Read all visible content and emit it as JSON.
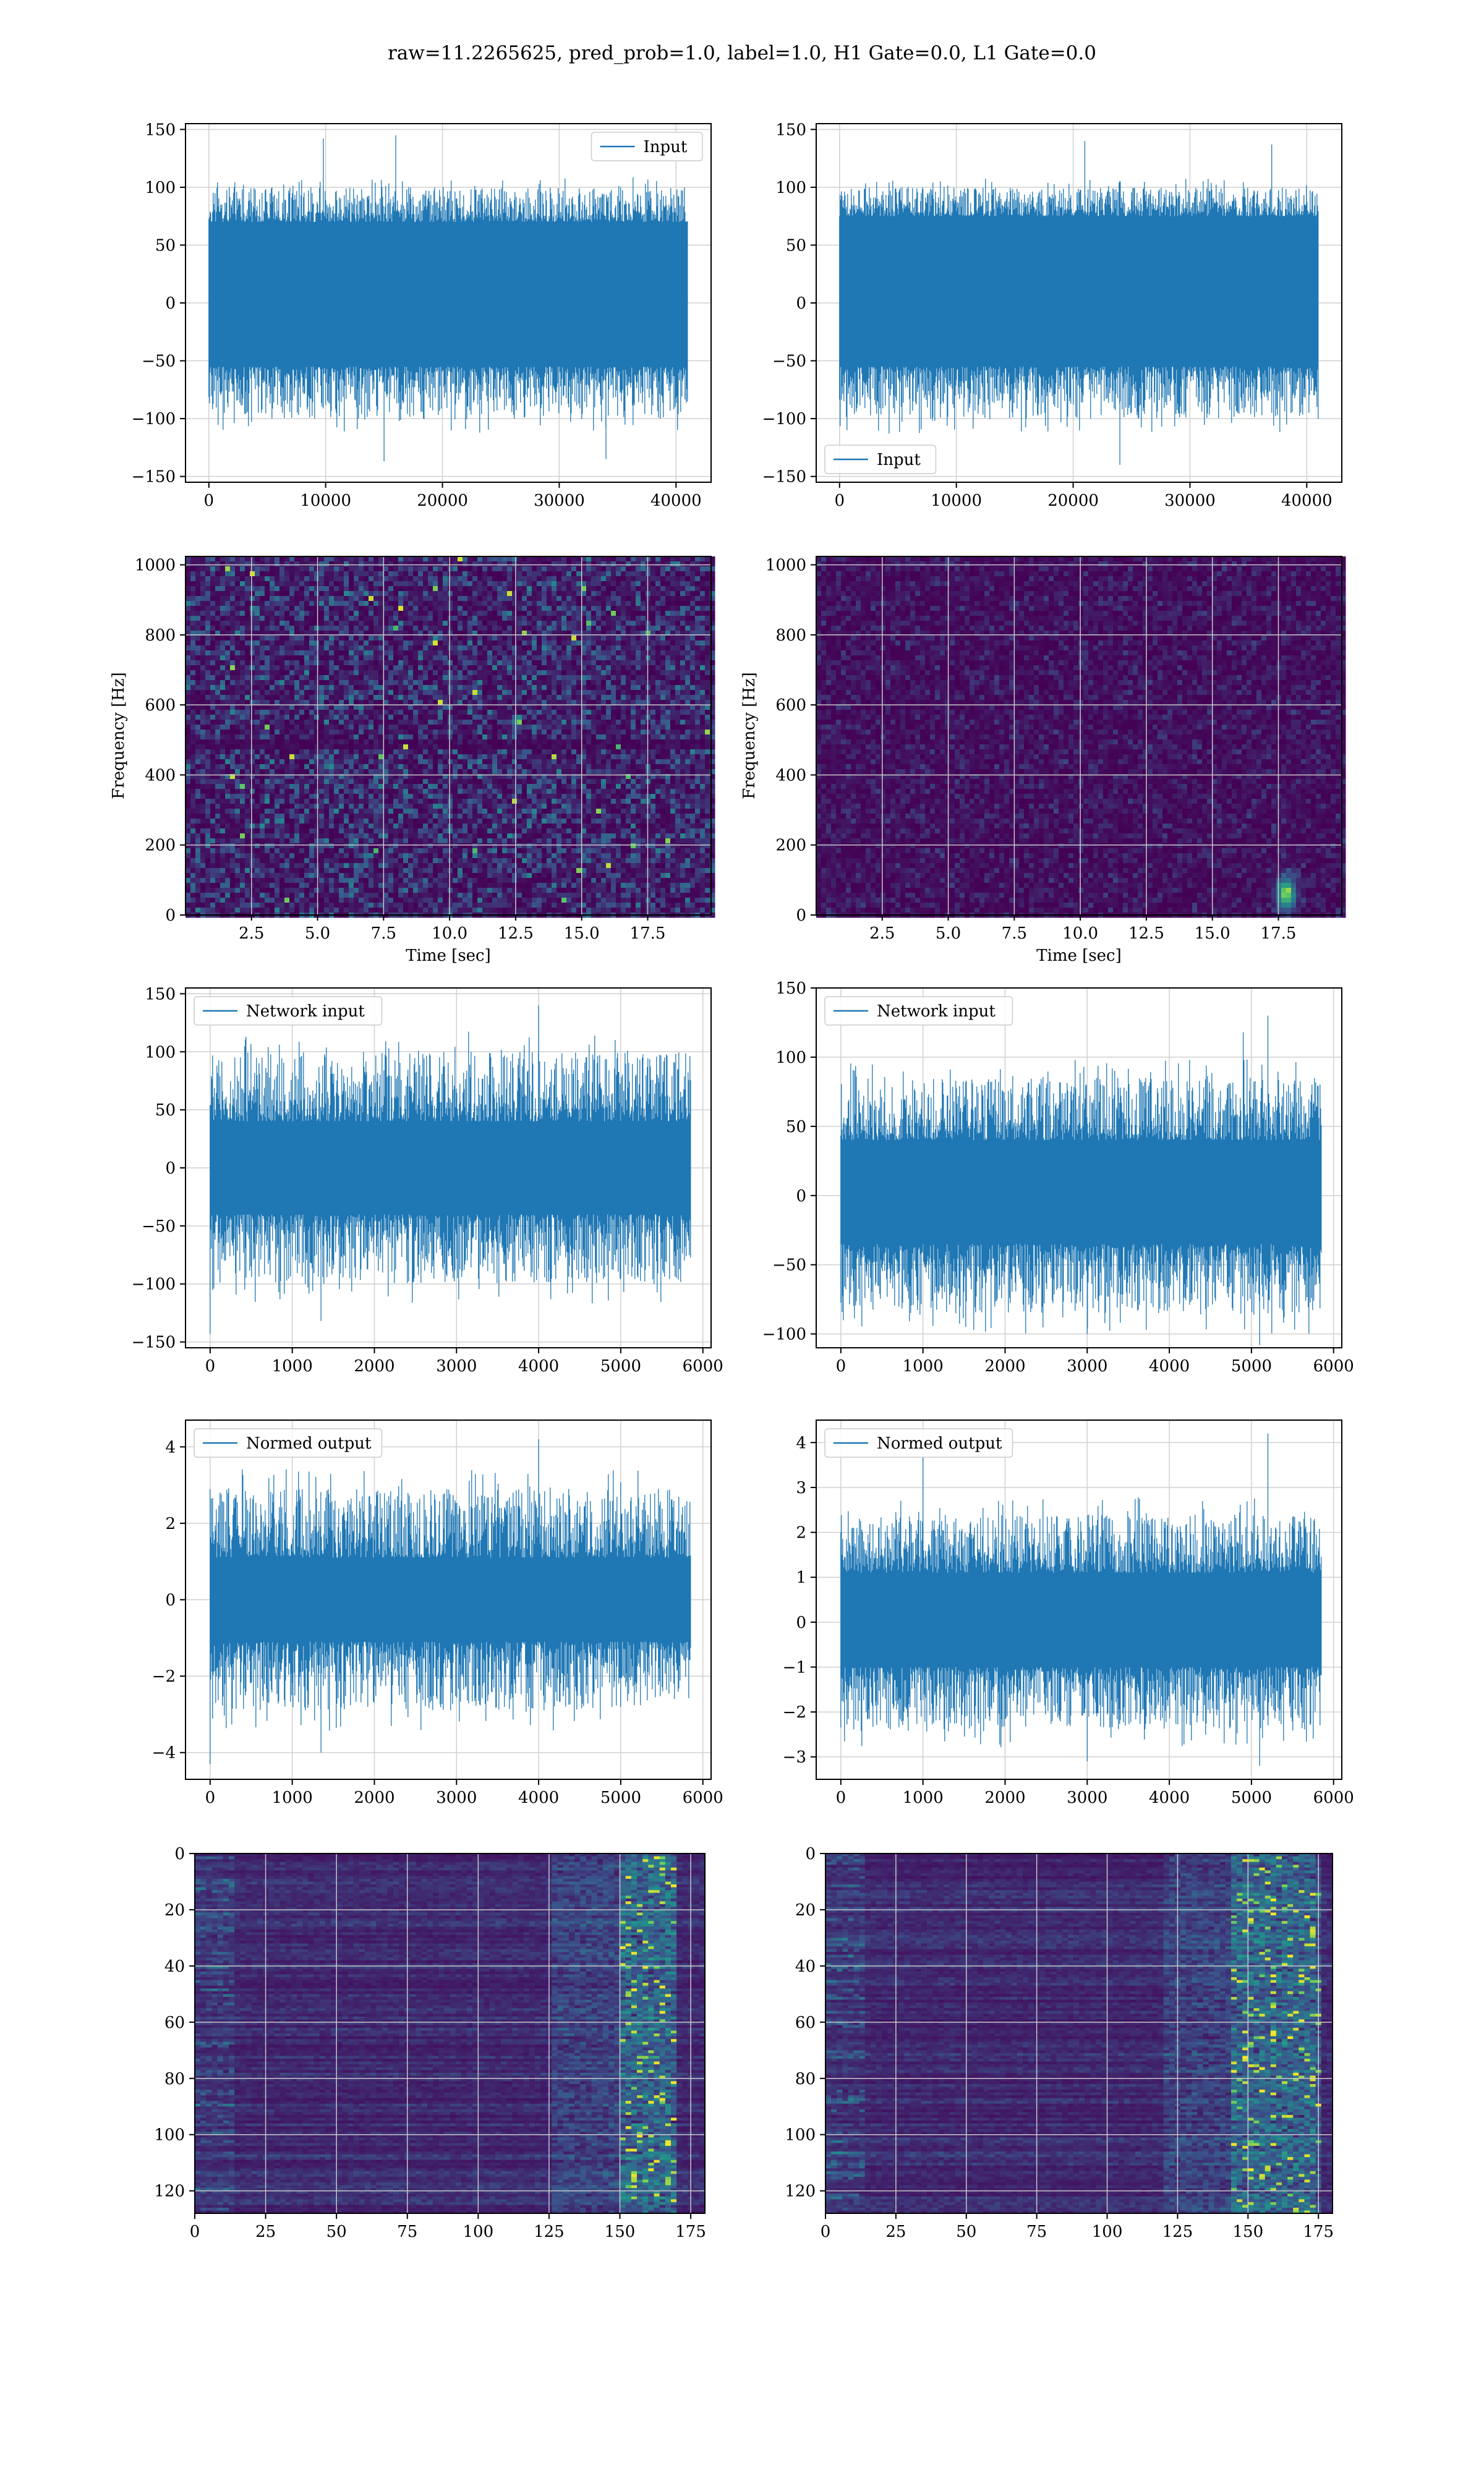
{
  "figure": {
    "title": "raw=11.2265625, pred_prob=1.0, label=1.0, H1 Gate=0.0, L1 Gate=0.0"
  },
  "colors": {
    "series": "#1f77b4",
    "grid": "#b0b0b0",
    "viridis_low": "#440154",
    "viridis_mid": "#21918c",
    "viridis_high": "#fde725"
  },
  "chart_data": [
    {
      "id": "input-left",
      "type": "line",
      "legend": {
        "label": "Input",
        "loc": "upper right"
      },
      "xlim": [
        -2000,
        43000
      ],
      "ylim": [
        -155,
        155
      ],
      "xticks": [
        0,
        10000,
        20000,
        30000,
        40000
      ],
      "yticks": [
        -150,
        -100,
        -50,
        0,
        50,
        100,
        150
      ],
      "n_samples": 40960,
      "envelope": [
        -100,
        100
      ],
      "core": [
        -55,
        70
      ],
      "peaks": [
        {
          "x": 9800,
          "y": 142
        },
        {
          "x": 16000,
          "y": 145
        },
        {
          "x": 15000,
          "y": -137
        },
        {
          "x": 34000,
          "y": -135
        }
      ],
      "grid": true
    },
    {
      "id": "input-right",
      "type": "line",
      "legend": {
        "label": "Input",
        "loc": "lower left"
      },
      "xlim": [
        -2000,
        43000
      ],
      "ylim": [
        -155,
        155
      ],
      "xticks": [
        0,
        10000,
        20000,
        30000,
        40000
      ],
      "yticks": [
        -150,
        -100,
        -50,
        0,
        50,
        100,
        150
      ],
      "n_samples": 40960,
      "envelope": [
        -100,
        100
      ],
      "core": [
        -55,
        75
      ],
      "peaks": [
        {
          "x": 21000,
          "y": 140
        },
        {
          "x": 24000,
          "y": -140
        },
        {
          "x": 37000,
          "y": 137
        }
      ],
      "grid": true
    },
    {
      "id": "spectrogram-left",
      "type": "heatmap",
      "xlabel": "Time [sec]",
      "ylabel": "Frequency [Hz]",
      "xlim": [
        0,
        19.9
      ],
      "ylim": [
        0,
        1024
      ],
      "xticks": [
        2.5,
        5.0,
        7.5,
        10.0,
        12.5,
        15.0,
        17.5
      ],
      "yticks": [
        0,
        200,
        400,
        600,
        800,
        1000
      ],
      "colormap": "viridis",
      "intensity": "moderate",
      "grid": true
    },
    {
      "id": "spectrogram-right",
      "type": "heatmap",
      "xlabel": "Time [sec]",
      "ylabel": "Frequency [Hz]",
      "xlim": [
        0,
        19.9
      ],
      "ylim": [
        0,
        1024
      ],
      "xticks": [
        2.5,
        5.0,
        7.5,
        10.0,
        12.5,
        15.0,
        17.5
      ],
      "yticks": [
        0,
        200,
        400,
        600,
        800,
        1000
      ],
      "colormap": "viridis",
      "intensity": "low",
      "hotspot": {
        "t": 17.8,
        "f": 60
      },
      "grid": true
    },
    {
      "id": "network-input-left",
      "type": "line",
      "legend": {
        "label": "Network input",
        "loc": "upper left"
      },
      "xlim": [
        -300,
        6100
      ],
      "ylim": [
        -155,
        155
      ],
      "xticks": [
        0,
        1000,
        2000,
        3000,
        4000,
        5000,
        6000
      ],
      "yticks": [
        -150,
        -100,
        -50,
        0,
        50,
        100,
        150
      ],
      "n_samples": 5850,
      "envelope": [
        -100,
        100
      ],
      "core": [
        -40,
        40
      ],
      "peaks": [
        {
          "x": 4000,
          "y": 140
        },
        {
          "x": 0,
          "y": -143
        },
        {
          "x": 1350,
          "y": -132
        }
      ],
      "grid": true
    },
    {
      "id": "network-input-right",
      "type": "line",
      "legend": {
        "label": "Network input",
        "loc": "upper left"
      },
      "xlim": [
        -300,
        6100
      ],
      "ylim": [
        -110,
        150
      ],
      "xticks": [
        0,
        1000,
        2000,
        3000,
        4000,
        5000,
        6000
      ],
      "yticks": [
        -100,
        -50,
        0,
        50,
        100,
        150
      ],
      "n_samples": 5850,
      "envelope": [
        -85,
        85
      ],
      "core": [
        -35,
        40
      ],
      "peaks": [
        {
          "x": 5200,
          "y": 130
        },
        {
          "x": 4900,
          "y": 118
        },
        {
          "x": 5100,
          "y": -108
        },
        {
          "x": 3000,
          "y": -100
        }
      ],
      "grid": true
    },
    {
      "id": "normed-output-left",
      "type": "line",
      "legend": {
        "label": "Normed output",
        "loc": "upper left"
      },
      "xlim": [
        -300,
        6100
      ],
      "ylim": [
        -4.7,
        4.7
      ],
      "xticks": [
        0,
        1000,
        2000,
        3000,
        4000,
        5000,
        6000
      ],
      "yticks": [
        -4,
        -2,
        0,
        2,
        4
      ],
      "n_samples": 5850,
      "envelope": [
        -2.9,
        2.9
      ],
      "core": [
        -1.1,
        1.1
      ],
      "peaks": [
        {
          "x": 4000,
          "y": 4.2
        },
        {
          "x": 0,
          "y": -4.3
        },
        {
          "x": 1350,
          "y": -4.0
        }
      ],
      "grid": true
    },
    {
      "id": "normed-output-right",
      "type": "line",
      "legend": {
        "label": "Normed output",
        "loc": "upper left"
      },
      "xlim": [
        -300,
        6100
      ],
      "ylim": [
        -3.5,
        4.5
      ],
      "xticks": [
        0,
        1000,
        2000,
        3000,
        4000,
        5000,
        6000
      ],
      "yticks": [
        -3,
        -2,
        -1,
        0,
        1,
        2,
        3,
        4
      ],
      "n_samples": 5850,
      "envelope": [
        -2.4,
        2.4
      ],
      "core": [
        -1.0,
        1.1
      ],
      "peaks": [
        {
          "x": 5200,
          "y": 4.2
        },
        {
          "x": 1000,
          "y": 3.7
        },
        {
          "x": 5100,
          "y": -3.2
        },
        {
          "x": 3000,
          "y": -3.1
        }
      ],
      "grid": true
    },
    {
      "id": "feature-map-left",
      "type": "heatmap",
      "xlim": [
        0,
        180
      ],
      "ylim": [
        128,
        0
      ],
      "xticks": [
        0,
        25,
        50,
        75,
        100,
        125,
        150,
        175
      ],
      "yticks": [
        0,
        20,
        40,
        60,
        80,
        100,
        120
      ],
      "colormap": "viridis",
      "hot_columns": [
        150,
        170
      ],
      "grid": true
    },
    {
      "id": "feature-map-right",
      "type": "heatmap",
      "xlim": [
        0,
        180
      ],
      "ylim": [
        128,
        0
      ],
      "xticks": [
        0,
        25,
        50,
        75,
        100,
        125,
        150,
        175
      ],
      "yticks": [
        0,
        20,
        40,
        60,
        80,
        100,
        120
      ],
      "colormap": "viridis",
      "hot_columns": [
        145,
        175
      ],
      "grid": true
    }
  ]
}
